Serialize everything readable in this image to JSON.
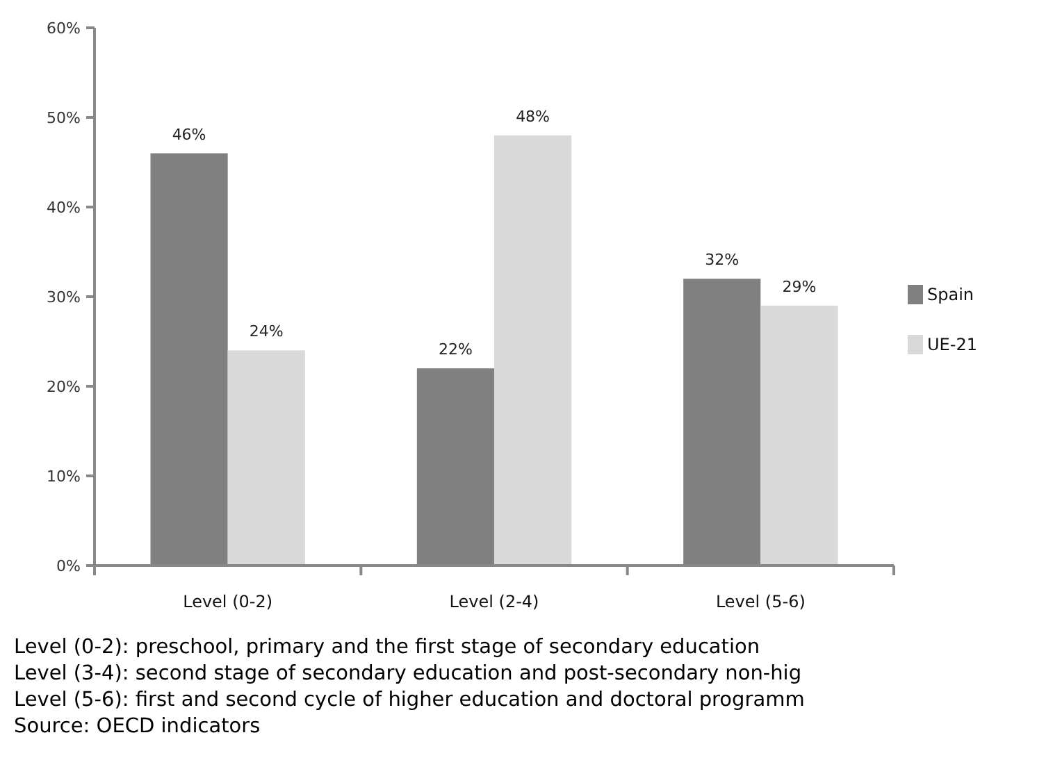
{
  "chart_data": {
    "type": "bar",
    "categories": [
      "Level (0-2)",
      "Level (2-4)",
      "Level (5-6)"
    ],
    "series": [
      {
        "name": "Spain",
        "color": "#808080",
        "values": [
          46,
          22,
          32
        ],
        "value_labels": [
          "46%",
          "22%",
          "32%"
        ]
      },
      {
        "name": "UE-21",
        "color": "#d9d9d9",
        "values": [
          24,
          48,
          29
        ],
        "value_labels": [
          "24%",
          "48%",
          "29%"
        ]
      }
    ],
    "ylim": [
      0,
      60
    ],
    "yticks": [
      {
        "value": 0,
        "label": "0%"
      },
      {
        "value": 10,
        "label": "10%"
      },
      {
        "value": 20,
        "label": "20%"
      },
      {
        "value": 30,
        "label": "30%"
      },
      {
        "value": 40,
        "label": "40%"
      },
      {
        "value": 50,
        "label": "50%"
      },
      {
        "value": 60,
        "label": "60%"
      }
    ],
    "grid": false,
    "legend": "right",
    "annotations": [
      "Level (0-2): preschool, primary and the first stage of secondary education",
      "Level (3-4): second stage of secondary education and post-secondary non-hig",
      "Level (5-6): first and second cycle of higher education and doctoral programm",
      "Source: OECD indicators"
    ]
  }
}
